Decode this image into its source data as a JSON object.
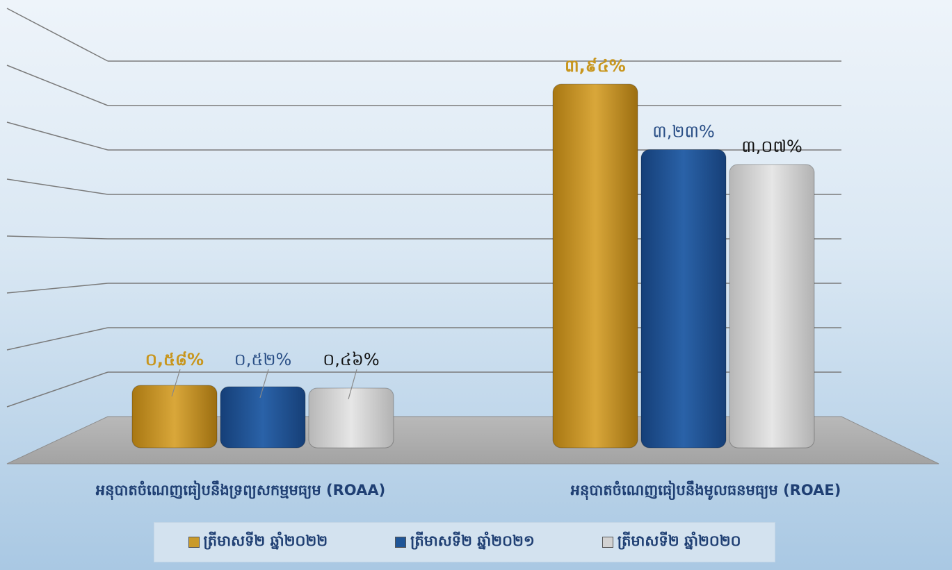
{
  "chart_data": {
    "type": "bar",
    "categories": [
      "អនុបាតចំណេញធៀបនឹងទ្រព្យសកម្មមធ្យម (ROAA)",
      "អនុបាតចំណេញធៀបនឹងមូលធនមធ្យម (ROAE)"
    ],
    "series": [
      {
        "name": "ត្រីមាសទី២ ឆ្នាំ២០២២",
        "values": [
          0.58,
          3.94
        ],
        "labels": [
          "០,៥៨%",
          "៣,៩៤%"
        ],
        "color": "#c99a2a",
        "label_color": "#c8961e"
      },
      {
        "name": "ត្រីមាសទី២ ឆ្នាំ២០២១",
        "values": [
          0.52,
          3.23
        ],
        "labels": [
          "០,៥២%",
          "៣,២៣%"
        ],
        "color": "#1f5597",
        "label_color": "#2a4f86"
      },
      {
        "name": "ត្រីមាសទី២ ឆ្នាំ២០២០",
        "values": [
          0.46,
          3.07
        ],
        "labels": [
          "០,៤៦%",
          "៣,០៧%"
        ],
        "color": "#d2d2d2",
        "label_color": "#111111"
      }
    ],
    "ylim": [
      0,
      4.5
    ],
    "grid": true,
    "legend_position": "bottom"
  }
}
